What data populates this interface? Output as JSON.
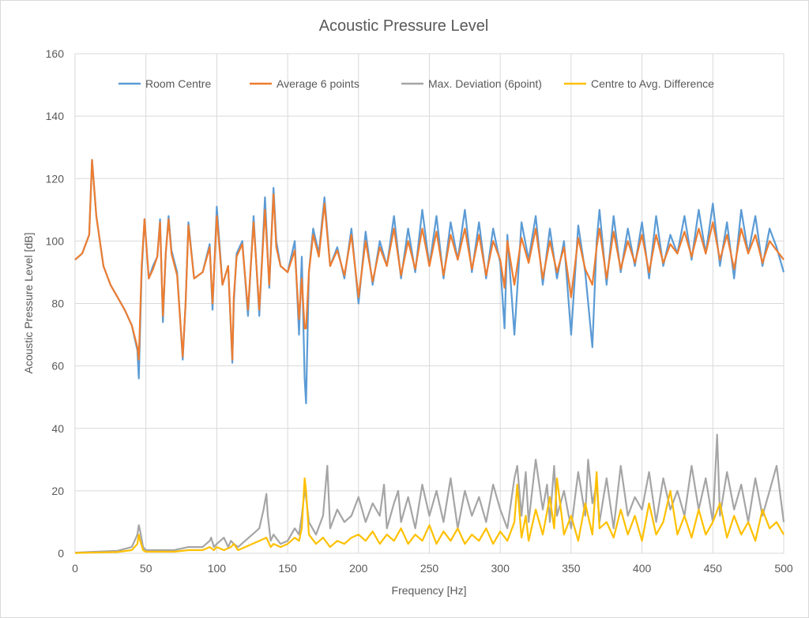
{
  "chart_data": {
    "type": "line",
    "title": "Acoustic Pressure Level",
    "xlabel": "Frequency [Hz]",
    "ylabel": "Acoustic Pressure Level [dB]",
    "xlim": [
      0,
      500
    ],
    "ylim": [
      0,
      160
    ],
    "xticks": [
      0,
      50,
      100,
      150,
      200,
      250,
      300,
      350,
      400,
      450,
      500
    ],
    "yticks": [
      0,
      20,
      40,
      60,
      80,
      100,
      120,
      140,
      160
    ],
    "grid": "major",
    "legend_position": "top",
    "series": [
      {
        "name": "Room Centre",
        "color": "#5b9bd5",
        "x": [
          0,
          5,
          10,
          12,
          15,
          20,
          25,
          30,
          35,
          40,
          44,
          45,
          47,
          49,
          52,
          55,
          58,
          60,
          62,
          64,
          66,
          68,
          72,
          76,
          78,
          80,
          84,
          90,
          95,
          97,
          100,
          104,
          108,
          111,
          112,
          114,
          118,
          122,
          126,
          130,
          134,
          137,
          140,
          142,
          145,
          150,
          155,
          158,
          160,
          162,
          163,
          165,
          168,
          172,
          176,
          180,
          185,
          190,
          195,
          200,
          205,
          210,
          215,
          220,
          225,
          230,
          235,
          240,
          245,
          250,
          255,
          260,
          265,
          270,
          275,
          280,
          285,
          290,
          295,
          300,
          303,
          305,
          310,
          315,
          320,
          325,
          330,
          335,
          340,
          345,
          350,
          355,
          360,
          365,
          368,
          370,
          375,
          380,
          385,
          390,
          395,
          400,
          405,
          410,
          415,
          420,
          425,
          430,
          435,
          440,
          445,
          450,
          455,
          460,
          465,
          470,
          475,
          480,
          485,
          490,
          495,
          500
        ],
        "y": [
          94,
          96,
          102,
          126,
          108,
          92,
          86,
          82,
          78,
          73,
          65,
          56,
          90,
          107,
          88,
          92,
          95,
          107,
          74,
          96,
          108,
          97,
          90,
          62,
          80,
          106,
          88,
          90,
          99,
          78,
          111,
          86,
          92,
          61,
          80,
          96,
          100,
          76,
          108,
          76,
          114,
          85,
          117,
          100,
          92,
          90,
          100,
          70,
          95,
          56,
          48,
          90,
          104,
          96,
          114,
          92,
          98,
          88,
          104,
          80,
          103,
          86,
          100,
          92,
          108,
          88,
          104,
          90,
          110,
          92,
          108,
          88,
          106,
          94,
          110,
          90,
          106,
          88,
          104,
          93,
          72,
          102,
          70,
          106,
          94,
          108,
          86,
          104,
          88,
          100,
          70,
          105,
          90,
          66,
          100,
          110,
          86,
          108,
          90,
          104,
          92,
          106,
          88,
          108,
          92,
          102,
          96,
          108,
          94,
          110,
          96,
          112,
          92,
          106,
          88,
          110,
          96,
          108,
          92,
          104,
          98,
          90
        ]
      },
      {
        "name": "Average 6 points",
        "color": "#ed7d31",
        "x": [
          0,
          5,
          10,
          12,
          15,
          20,
          25,
          30,
          35,
          40,
          44,
          45,
          47,
          49,
          52,
          55,
          58,
          60,
          62,
          64,
          66,
          68,
          72,
          76,
          78,
          80,
          84,
          90,
          95,
          97,
          100,
          104,
          108,
          111,
          112,
          114,
          118,
          122,
          126,
          130,
          134,
          137,
          140,
          142,
          145,
          150,
          155,
          158,
          160,
          162,
          163,
          165,
          168,
          172,
          176,
          180,
          185,
          190,
          195,
          200,
          205,
          210,
          215,
          220,
          225,
          230,
          235,
          240,
          245,
          250,
          255,
          260,
          265,
          270,
          275,
          280,
          285,
          290,
          295,
          300,
          303,
          305,
          310,
          315,
          320,
          325,
          330,
          335,
          340,
          345,
          350,
          355,
          360,
          365,
          368,
          370,
          375,
          380,
          385,
          390,
          395,
          400,
          405,
          410,
          415,
          420,
          425,
          430,
          435,
          440,
          445,
          450,
          455,
          460,
          465,
          470,
          475,
          480,
          485,
          490,
          495,
          500
        ],
        "y": [
          94,
          96,
          102,
          126,
          108,
          92,
          86,
          82,
          78,
          73,
          66,
          62,
          92,
          107,
          88,
          91,
          95,
          106,
          76,
          96,
          107,
          96,
          89,
          63,
          80,
          105,
          88,
          90,
          98,
          80,
          108,
          86,
          92,
          62,
          82,
          95,
          99,
          78,
          106,
          78,
          110,
          86,
          115,
          98,
          92,
          90,
          97,
          75,
          88,
          72,
          72,
          90,
          102,
          95,
          112,
          92,
          97,
          89,
          102,
          82,
          100,
          87,
          98,
          92,
          104,
          89,
          100,
          91,
          104,
          92,
          103,
          89,
          102,
          94,
          104,
          91,
          102,
          89,
          100,
          94,
          85,
          100,
          86,
          101,
          93,
          104,
          88,
          100,
          90,
          98,
          82,
          101,
          91,
          86,
          98,
          104,
          88,
          103,
          91,
          100,
          93,
          102,
          90,
          102,
          93,
          99,
          96,
          103,
          95,
          104,
          96,
          106,
          94,
          102,
          91,
          104,
          96,
          102,
          93,
          100,
          97,
          94
        ]
      },
      {
        "name": "Max. Deviation (6point)",
        "color": "#a5a5a5",
        "x": [
          0,
          10,
          20,
          30,
          40,
          44,
          45,
          46,
          48,
          50,
          60,
          70,
          80,
          90,
          95,
          96,
          98,
          100,
          105,
          108,
          110,
          112,
          115,
          120,
          125,
          130,
          133,
          135,
          136,
          138,
          140,
          145,
          150,
          155,
          158,
          160,
          162,
          163,
          165,
          170,
          175,
          178,
          180,
          185,
          190,
          195,
          200,
          205,
          210,
          215,
          218,
          220,
          225,
          228,
          230,
          235,
          240,
          245,
          250,
          255,
          260,
          265,
          270,
          275,
          280,
          285,
          290,
          295,
          300,
          305,
          310,
          312,
          315,
          318,
          320,
          325,
          330,
          333,
          335,
          338,
          340,
          345,
          350,
          355,
          360,
          362,
          365,
          368,
          370,
          375,
          380,
          385,
          390,
          395,
          400,
          405,
          410,
          415,
          420,
          425,
          430,
          435,
          440,
          445,
          450,
          453,
          455,
          460,
          465,
          470,
          475,
          480,
          485,
          490,
          495,
          500
        ],
        "y": [
          0.2,
          0.4,
          0.6,
          0.8,
          2,
          6,
          9,
          7,
          2,
          1,
          1,
          1,
          2,
          2,
          4,
          5,
          2,
          3,
          5,
          2,
          4,
          3,
          2,
          4,
          6,
          8,
          14,
          19,
          12,
          4,
          6,
          3,
          4,
          8,
          6,
          12,
          20,
          18,
          10,
          6,
          12,
          28,
          8,
          14,
          10,
          12,
          18,
          10,
          16,
          12,
          22,
          8,
          16,
          20,
          10,
          18,
          8,
          22,
          12,
          20,
          10,
          24,
          8,
          20,
          12,
          18,
          10,
          22,
          14,
          8,
          24,
          28,
          12,
          26,
          10,
          30,
          14,
          22,
          10,
          28,
          12,
          20,
          8,
          26,
          12,
          30,
          16,
          22,
          10,
          24,
          8,
          28,
          12,
          18,
          14,
          26,
          10,
          24,
          14,
          20,
          12,
          28,
          14,
          24,
          10,
          38,
          12,
          26,
          14,
          22,
          10,
          24,
          12,
          20,
          28,
          10
        ]
      },
      {
        "name": "Centre to Avg. Difference",
        "color": "#ffc000",
        "x": [
          0,
          10,
          20,
          30,
          40,
          44,
          45,
          46,
          48,
          50,
          60,
          70,
          80,
          90,
          95,
          98,
          100,
          105,
          110,
          112,
          115,
          120,
          125,
          130,
          135,
          136,
          138,
          140,
          145,
          150,
          155,
          158,
          160,
          162,
          163,
          165,
          170,
          175,
          180,
          185,
          190,
          195,
          200,
          205,
          210,
          215,
          220,
          225,
          230,
          235,
          240,
          245,
          250,
          255,
          260,
          265,
          270,
          275,
          280,
          285,
          290,
          295,
          300,
          305,
          310,
          312,
          315,
          318,
          320,
          325,
          330,
          335,
          338,
          340,
          345,
          350,
          355,
          360,
          365,
          368,
          370,
          375,
          380,
          385,
          390,
          395,
          400,
          405,
          410,
          415,
          420,
          425,
          430,
          435,
          440,
          445,
          450,
          455,
          460,
          465,
          470,
          475,
          480,
          485,
          490,
          495,
          500
        ],
        "y": [
          0.1,
          0.2,
          0.3,
          0.4,
          1,
          3,
          6,
          4,
          1,
          0.5,
          0.5,
          0.5,
          1,
          1,
          2,
          1,
          2,
          1,
          2,
          3,
          1,
          2,
          3,
          4,
          5,
          4,
          2,
          3,
          2,
          3,
          5,
          4,
          8,
          24,
          20,
          6,
          3,
          5,
          2,
          4,
          3,
          5,
          6,
          4,
          7,
          3,
          6,
          4,
          8,
          3,
          6,
          4,
          9,
          3,
          7,
          4,
          8,
          3,
          6,
          4,
          8,
          3,
          7,
          4,
          10,
          22,
          5,
          12,
          4,
          14,
          6,
          18,
          8,
          24,
          6,
          12,
          4,
          16,
          6,
          26,
          8,
          10,
          5,
          14,
          6,
          12,
          4,
          16,
          6,
          10,
          20,
          6,
          12,
          5,
          14,
          6,
          10,
          16,
          5,
          12,
          6,
          10,
          4,
          14,
          8,
          10,
          6
        ]
      }
    ]
  }
}
